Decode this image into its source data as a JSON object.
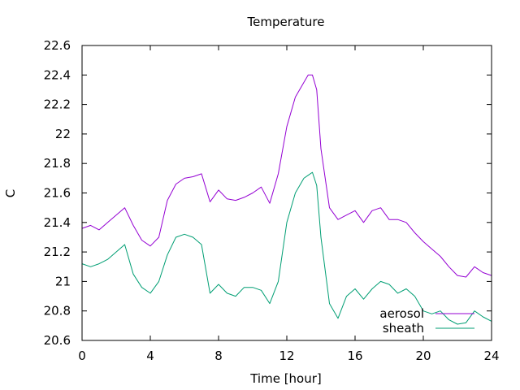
{
  "chart_data": {
    "type": "line",
    "title": "Temperature",
    "xlabel": "Time [hour]",
    "ylabel": "C",
    "xlim": [
      0,
      24
    ],
    "ylim": [
      20.6,
      22.6
    ],
    "xticks": [
      "0",
      "4",
      "8",
      "12",
      "16",
      "20",
      "24"
    ],
    "yticks": [
      "20.6",
      "20.8",
      "21",
      "21.2",
      "21.4",
      "21.6",
      "21.8",
      "22",
      "22.2",
      "22.4",
      "22.6"
    ],
    "grid": false,
    "legend": "bottom-right",
    "series": [
      {
        "name": "aerosol",
        "color": "#9400d3",
        "x": [
          0,
          0.5,
          1,
          1.5,
          2,
          2.5,
          3,
          3.5,
          4,
          4.5,
          5,
          5.5,
          6,
          6.5,
          7,
          7.5,
          8,
          8.5,
          9,
          9.5,
          10,
          10.5,
          11,
          11.5,
          12,
          12.5,
          13,
          13.25,
          13.5,
          13.75,
          14,
          14.5,
          15,
          15.5,
          16,
          16.5,
          17,
          17.5,
          18,
          18.5,
          19,
          19.5,
          20,
          20.5,
          21,
          21.5,
          22,
          22.5,
          23,
          23.5,
          24
        ],
        "values": [
          21.36,
          21.38,
          21.35,
          21.4,
          21.45,
          21.5,
          21.38,
          21.28,
          21.24,
          21.3,
          21.55,
          21.66,
          21.7,
          21.71,
          21.73,
          21.54,
          21.62,
          21.56,
          21.55,
          21.57,
          21.6,
          21.64,
          21.53,
          21.73,
          22.05,
          22.25,
          22.35,
          22.4,
          22.4,
          22.3,
          21.9,
          21.5,
          21.42,
          21.45,
          21.48,
          21.4,
          21.48,
          21.5,
          21.42,
          21.42,
          21.4,
          21.33,
          21.27,
          21.22,
          21.17,
          21.1,
          21.04,
          21.03,
          21.1,
          21.06,
          21.04
        ]
      },
      {
        "name": "sheath",
        "color": "#009e73",
        "x": [
          0,
          0.5,
          1,
          1.5,
          2,
          2.5,
          3,
          3.5,
          4,
          4.5,
          5,
          5.5,
          6,
          6.5,
          7,
          7.5,
          8,
          8.5,
          9,
          9.5,
          10,
          10.5,
          11,
          11.5,
          12,
          12.5,
          13,
          13.25,
          13.5,
          13.75,
          14,
          14.5,
          15,
          15.5,
          16,
          16.5,
          17,
          17.5,
          18,
          18.5,
          19,
          19.5,
          20,
          20.5,
          21,
          21.5,
          22,
          22.5,
          23,
          23.5,
          24
        ],
        "values": [
          21.12,
          21.1,
          21.12,
          21.15,
          21.2,
          21.25,
          21.05,
          20.96,
          20.92,
          21.0,
          21.18,
          21.3,
          21.32,
          21.3,
          21.25,
          20.92,
          20.98,
          20.92,
          20.9,
          20.96,
          20.96,
          20.94,
          20.85,
          21.0,
          21.4,
          21.6,
          21.7,
          21.72,
          21.74,
          21.65,
          21.3,
          20.85,
          20.75,
          20.9,
          20.95,
          20.88,
          20.95,
          21.0,
          20.98,
          20.92,
          20.95,
          20.9,
          20.8,
          20.78,
          20.8,
          20.74,
          20.71,
          20.72,
          20.8,
          20.76,
          20.73
        ]
      }
    ]
  }
}
